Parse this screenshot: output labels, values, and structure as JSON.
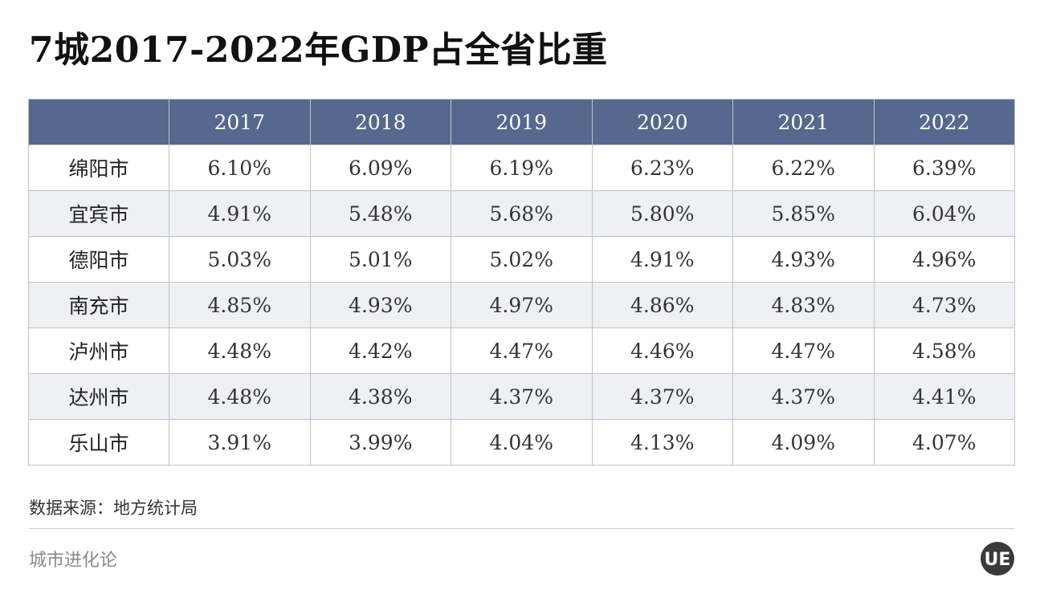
{
  "title": "7城2017-2022年GDP占全省比重",
  "source": "数据来源：地方统计局",
  "brand": "城市进化论",
  "logo_text": "UE",
  "colors": {
    "header_bg": "#56688e",
    "header_text": "#ffffff",
    "stripe": "#eef0f3",
    "logo": "#3a3a3a"
  },
  "chart_data": {
    "type": "table",
    "title": "7城2017-2022年GDP占全省比重",
    "columns": [
      "",
      "2017",
      "2018",
      "2019",
      "2020",
      "2021",
      "2022"
    ],
    "rows": [
      {
        "city": "绵阳市",
        "values": [
          "6.10%",
          "6.09%",
          "6.19%",
          "6.23%",
          "6.22%",
          "6.39%"
        ]
      },
      {
        "city": "宜宾市",
        "values": [
          "4.91%",
          "5.48%",
          "5.68%",
          "5.80%",
          "5.85%",
          "6.04%"
        ]
      },
      {
        "city": "德阳市",
        "values": [
          "5.03%",
          "5.01%",
          "5.02%",
          "4.91%",
          "4.93%",
          "4.96%"
        ]
      },
      {
        "city": "南充市",
        "values": [
          "4.85%",
          "4.93%",
          "4.97%",
          "4.86%",
          "4.83%",
          "4.73%"
        ]
      },
      {
        "city": "泸州市",
        "values": [
          "4.48%",
          "4.42%",
          "4.47%",
          "4.46%",
          "4.47%",
          "4.58%"
        ]
      },
      {
        "city": "达州市",
        "values": [
          "4.48%",
          "4.38%",
          "4.37%",
          "4.37%",
          "4.37%",
          "4.41%"
        ]
      },
      {
        "city": "乐山市",
        "values": [
          "3.91%",
          "3.99%",
          "4.04%",
          "4.13%",
          "4.09%",
          "4.07%"
        ]
      }
    ]
  }
}
